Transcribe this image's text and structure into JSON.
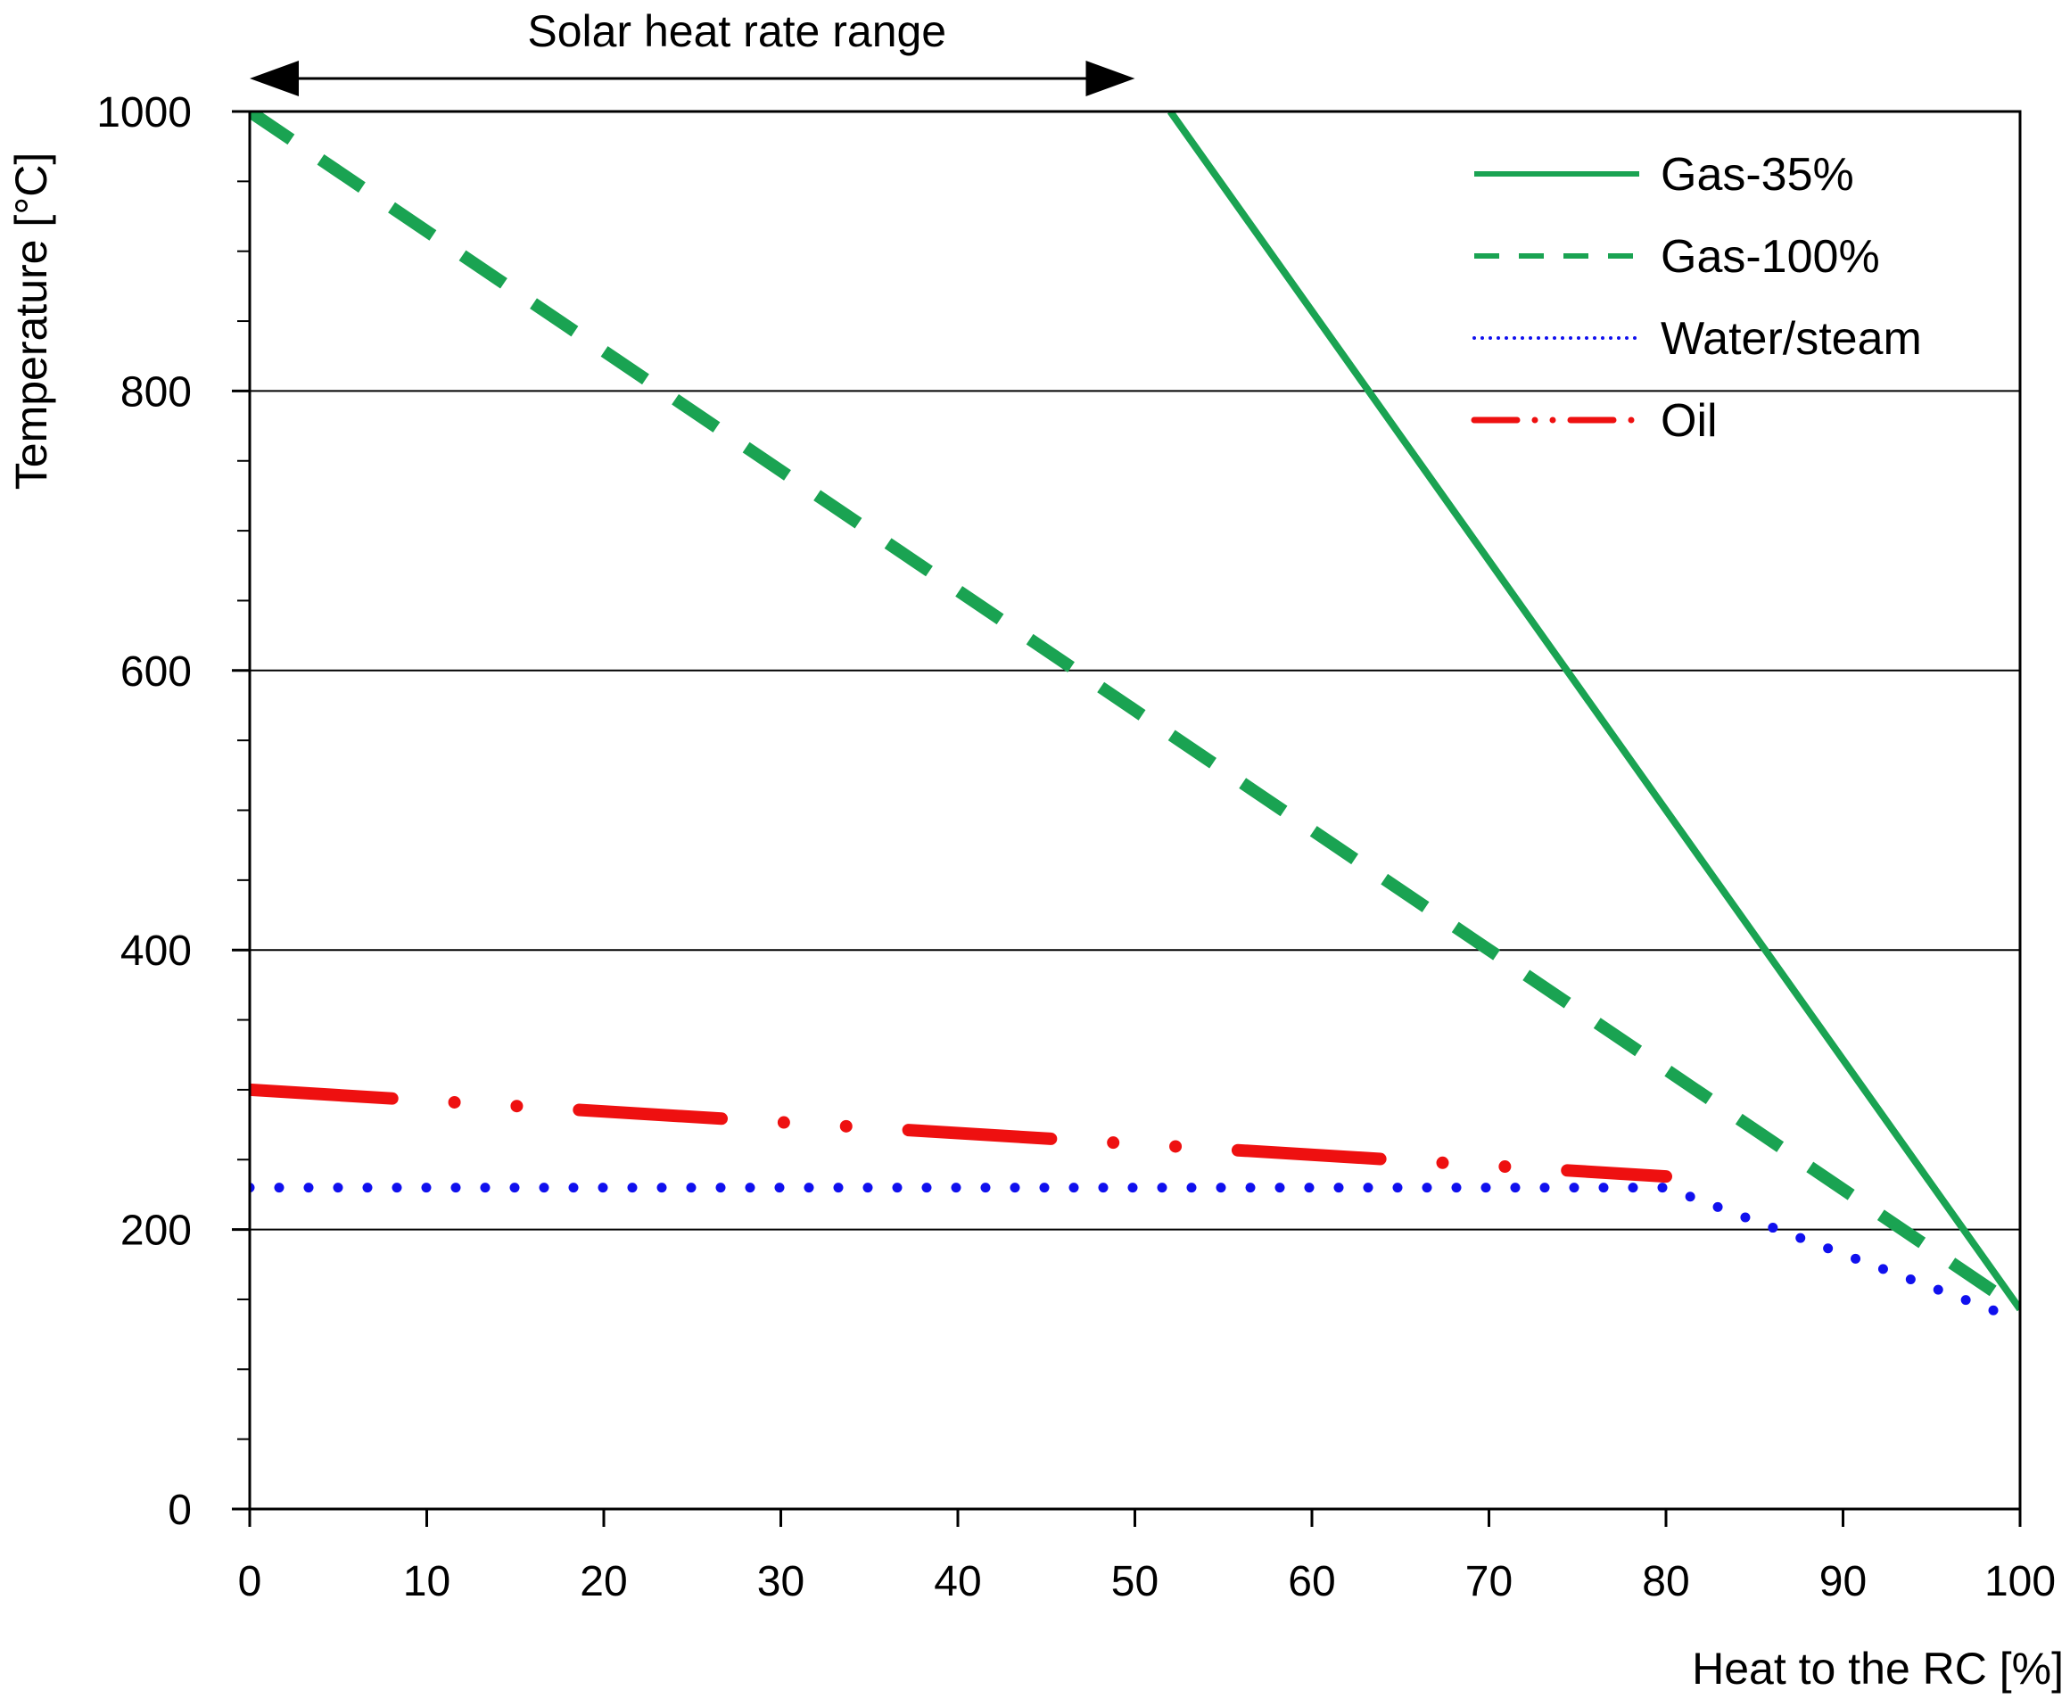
{
  "chart_data": {
    "type": "line",
    "title": "",
    "xlabel": "Heat to the RC [%]",
    "ylabel": "Temperature [°C]",
    "xlim": [
      0,
      100
    ],
    "ylim": [
      0,
      1000
    ],
    "xticks": [
      0,
      10,
      20,
      30,
      40,
      50,
      60,
      70,
      80,
      90,
      100
    ],
    "yticks": [
      0,
      200,
      400,
      600,
      800,
      1000
    ],
    "y_minor_step": 50,
    "gridlines_y": [
      200,
      400,
      600,
      800
    ],
    "legend_position": "top-right",
    "series": [
      {
        "name": "Gas-35%",
        "style": "solid",
        "color": "#1aa352",
        "points": [
          [
            52,
            1000
          ],
          [
            100,
            143
          ]
        ]
      },
      {
        "name": "Gas-100%",
        "style": "dashed",
        "color": "#1aa352",
        "points": [
          [
            0,
            1000
          ],
          [
            100,
            143
          ]
        ]
      },
      {
        "name": "Water/steam",
        "style": "dotted",
        "color": "#1010ee",
        "points": [
          [
            0,
            230
          ],
          [
            80,
            230
          ],
          [
            100,
            135
          ]
        ]
      },
      {
        "name": "Oil",
        "style": "dash-dot",
        "color": "#ee1010",
        "points": [
          [
            0,
            300
          ],
          [
            80,
            238
          ]
        ]
      }
    ],
    "annotations": [
      {
        "text": "Solar heat rate range",
        "type": "double-arrow",
        "x_from": 0,
        "x_to": 50
      }
    ]
  }
}
